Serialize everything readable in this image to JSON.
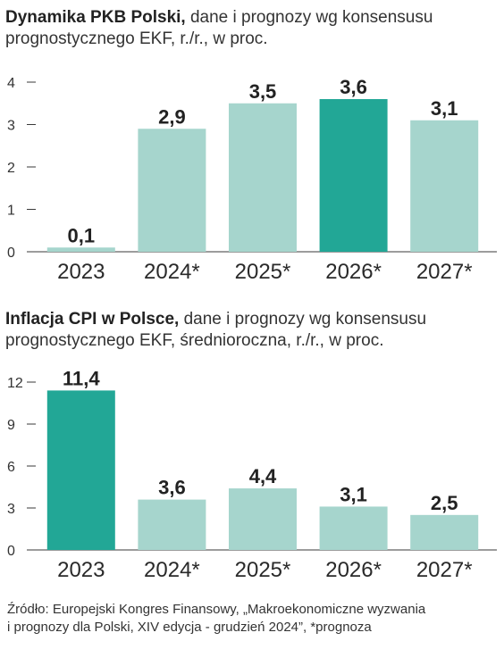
{
  "chart_data": [
    {
      "type": "bar",
      "title": "Dynamika PKB Polski,",
      "subtitle": "dane i prognozy wg konsensusu prognostycznego EKF, r./r., w proc.",
      "categories": [
        "2023",
        "2024*",
        "2025*",
        "2026*",
        "2027*"
      ],
      "values": [
        0.1,
        2.9,
        3.5,
        3.6,
        3.1
      ],
      "value_labels": [
        "0,1",
        "2,9",
        "3,5",
        "3,6",
        "3,1"
      ],
      "highlight_index": 3,
      "ylim": [
        0,
        4
      ],
      "yticks": [
        0,
        1,
        2,
        3,
        4
      ],
      "grid": false,
      "colors": {
        "bar": "#a6d5cd",
        "highlight": "#22a796",
        "axis": "#3a3a3a"
      }
    },
    {
      "type": "bar",
      "title": "Inflacja CPI w Polsce,",
      "subtitle": "dane i prognozy wg konsensusu prognostycznego EKF, średnioroczna, r./r., w proc.",
      "categories": [
        "2023",
        "2024*",
        "2025*",
        "2026*",
        "2027*"
      ],
      "values": [
        11.4,
        3.6,
        4.4,
        3.1,
        2.5
      ],
      "value_labels": [
        "11,4",
        "3,6",
        "4,4",
        "3,1",
        "2,5"
      ],
      "highlight_index": 0,
      "ylim": [
        0,
        12
      ],
      "yticks": [
        0,
        3,
        6,
        9,
        12
      ],
      "grid": false,
      "colors": {
        "bar": "#a6d5cd",
        "highlight": "#22a796",
        "axis": "#3a3a3a"
      }
    }
  ],
  "source": {
    "line1": "Źródło: Europejski Kongres Finansowy, „Makroekonomiczne wyzwania",
    "line2": "i prognozy dla Polski, XIV edycja - grudzień 2024”, *prognoza"
  }
}
